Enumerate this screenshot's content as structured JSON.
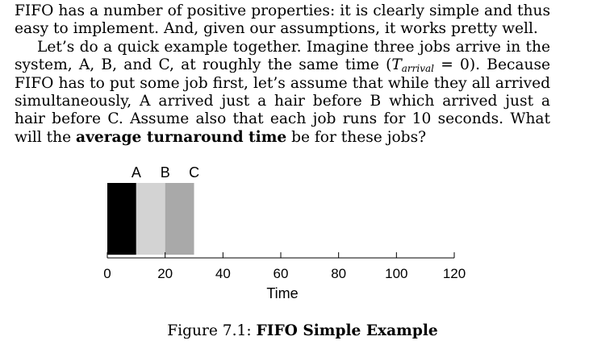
{
  "paragraphs": {
    "p1": "FIFO has a number of positive properties: it is clearly simple and thus easy to implement. And, given our assumptions, it works pretty well.",
    "p2_a": "Let’s do a quick example together. Imagine three jobs arrive in the system, A, B, and C, at roughly the same time (",
    "p2_math_T": "T",
    "p2_math_sub": "arrival",
    "p2_math_rest": " = 0). ",
    "p2_b": "Because FIFO has to put some job first, let’s assume that while they all arrived simultaneously, A arrived just a hair before B which arrived just a hair before C. Assume also that each job runs for 10 seconds. What will the ",
    "p2_bold": "average turnaround time",
    "p2_c": " be for these jobs?"
  },
  "figure": {
    "caption_prefix": "Figure 7.1: ",
    "caption_title": "FIFO Simple Example"
  },
  "chart_data": {
    "type": "bar",
    "subtype": "gantt",
    "xlabel": "Time",
    "ylabel": "",
    "xlim": [
      0,
      120
    ],
    "xticks": [
      0,
      20,
      40,
      60,
      80,
      100,
      120
    ],
    "jobs": [
      {
        "name": "A",
        "start": 0,
        "end": 10,
        "color": "#000000"
      },
      {
        "name": "B",
        "start": 10,
        "end": 20,
        "color": "#d3d3d3"
      },
      {
        "name": "C",
        "start": 20,
        "end": 30,
        "color": "#a9a9a9"
      }
    ]
  }
}
